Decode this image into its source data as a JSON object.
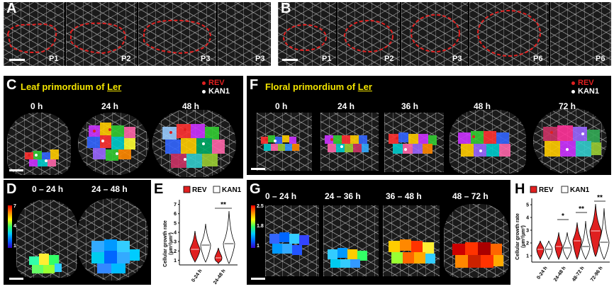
{
  "panels": {
    "A": {
      "label": "A",
      "stages": [
        "P1",
        "P2",
        "P3",
        "P3"
      ]
    },
    "B": {
      "label": "B",
      "stages": [
        "P1",
        "P2",
        "P3",
        "P6",
        "P6"
      ]
    },
    "C": {
      "label": "C",
      "title_prefix": "Leaf primordium of ",
      "title_strain": "Ler",
      "times": [
        "0 h",
        "24 h",
        "48 h"
      ]
    },
    "D": {
      "label": "D",
      "intervals": [
        "0 – 24 h",
        "24 – 48 h"
      ],
      "colorbar_ticks": [
        "7",
        "4",
        "1"
      ]
    },
    "E": {
      "label": "E"
    },
    "F": {
      "label": "F",
      "title_prefix": "Floral primordium of ",
      "title_strain": "Ler",
      "times": [
        "0 h",
        "24 h",
        "36 h",
        "48 h",
        "72 h"
      ]
    },
    "G": {
      "label": "G",
      "intervals": [
        "0 – 24 h",
        "24 – 36 h",
        "36 – 48 h",
        "48 – 72 h"
      ],
      "colorbar_ticks": [
        "2.5",
        "1.8",
        "1"
      ]
    },
    "H": {
      "label": "H"
    }
  },
  "legend": {
    "rev": "REV",
    "kan1": "KAN1"
  },
  "colors": {
    "rev": "#e02020",
    "kan1": "#ffffff",
    "title": "#f2e400",
    "outline": "#e02020"
  },
  "plot_E": {
    "ylabel": "Cellular growth rate",
    "ylabel_unit": "(µm²/µm²)",
    "yticks": [
      "1",
      "2",
      "3",
      "4",
      "5",
      "6",
      "7"
    ],
    "categories": [
      "0-24 h",
      "24-48 h"
    ],
    "significance": [
      "",
      "**"
    ],
    "legend": [
      "REV",
      "KAN1"
    ]
  },
  "plot_H": {
    "ylabel": "Cellular growth rate",
    "ylabel_unit": "(µm²/µm²)",
    "yticks": [
      "1",
      "2",
      "3",
      "4",
      "5"
    ],
    "categories": [
      "0-24 h",
      "24-48 h",
      "48-72 h",
      "72-96 h"
    ],
    "significance": [
      "",
      "*",
      "**",
      "**"
    ],
    "legend": [
      "REV",
      "KAN1"
    ]
  }
}
